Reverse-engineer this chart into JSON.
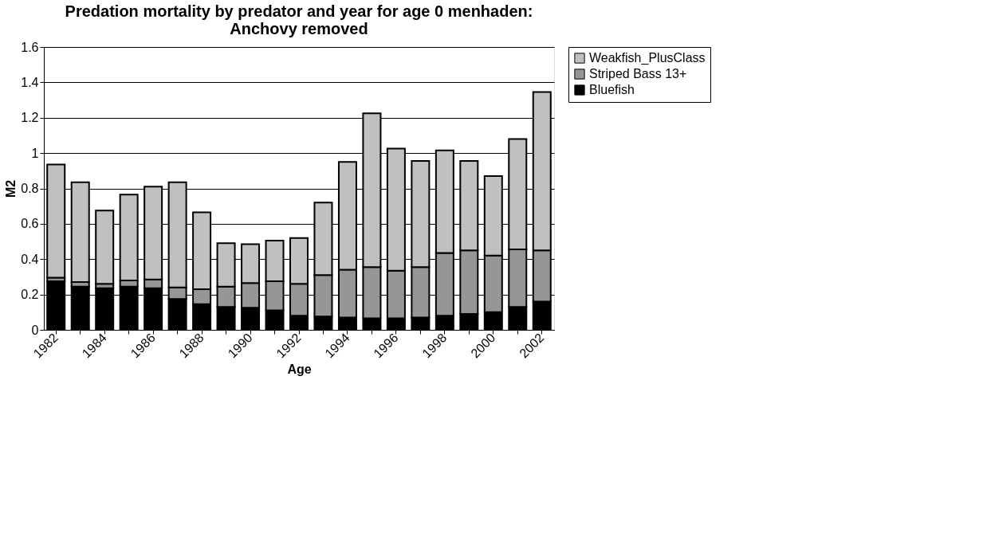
{
  "chart_data": {
    "type": "bar",
    "title": "Predation mortality by predator and year for age 0 menhaden:\nAnchovy removed",
    "xlabel": "Age",
    "ylabel": "M2",
    "categories": [
      "1982",
      null,
      "1984",
      null,
      "1986",
      null,
      "1988",
      null,
      "1990",
      null,
      "1992",
      null,
      "1994",
      null,
      "1996",
      null,
      "1998",
      null,
      "2000",
      null,
      "2002"
    ],
    "stacked": true,
    "series": [
      {
        "name": "Bluefish",
        "color": "#000000",
        "values": [
          0.275,
          0.245,
          0.235,
          0.245,
          0.235,
          0.175,
          0.145,
          0.13,
          0.125,
          0.11,
          0.08,
          0.075,
          0.07,
          0.065,
          0.065,
          0.07,
          0.08,
          0.09,
          0.1,
          0.13,
          0.16
        ]
      },
      {
        "name": "Striped Bass 13+",
        "color": "#969696",
        "values": [
          0.02,
          0.025,
          0.025,
          0.035,
          0.05,
          0.065,
          0.085,
          0.115,
          0.14,
          0.165,
          0.18,
          0.235,
          0.27,
          0.29,
          0.27,
          0.285,
          0.355,
          0.36,
          0.32,
          0.325,
          0.29
        ]
      },
      {
        "name": "Weakfish_PlusClass",
        "color": "#c0c0c0",
        "values": [
          0.64,
          0.565,
          0.415,
          0.485,
          0.525,
          0.595,
          0.435,
          0.245,
          0.22,
          0.23,
          0.26,
          0.41,
          0.61,
          0.87,
          0.69,
          0.6,
          0.58,
          0.505,
          0.45,
          0.625,
          0.895
        ]
      }
    ],
    "ylim": [
      0,
      1.6
    ],
    "yticks": [
      0,
      0.2,
      0.4,
      0.6,
      0.8,
      1,
      1.2,
      1.4,
      1.6
    ],
    "grid": "y",
    "legend": "right"
  }
}
